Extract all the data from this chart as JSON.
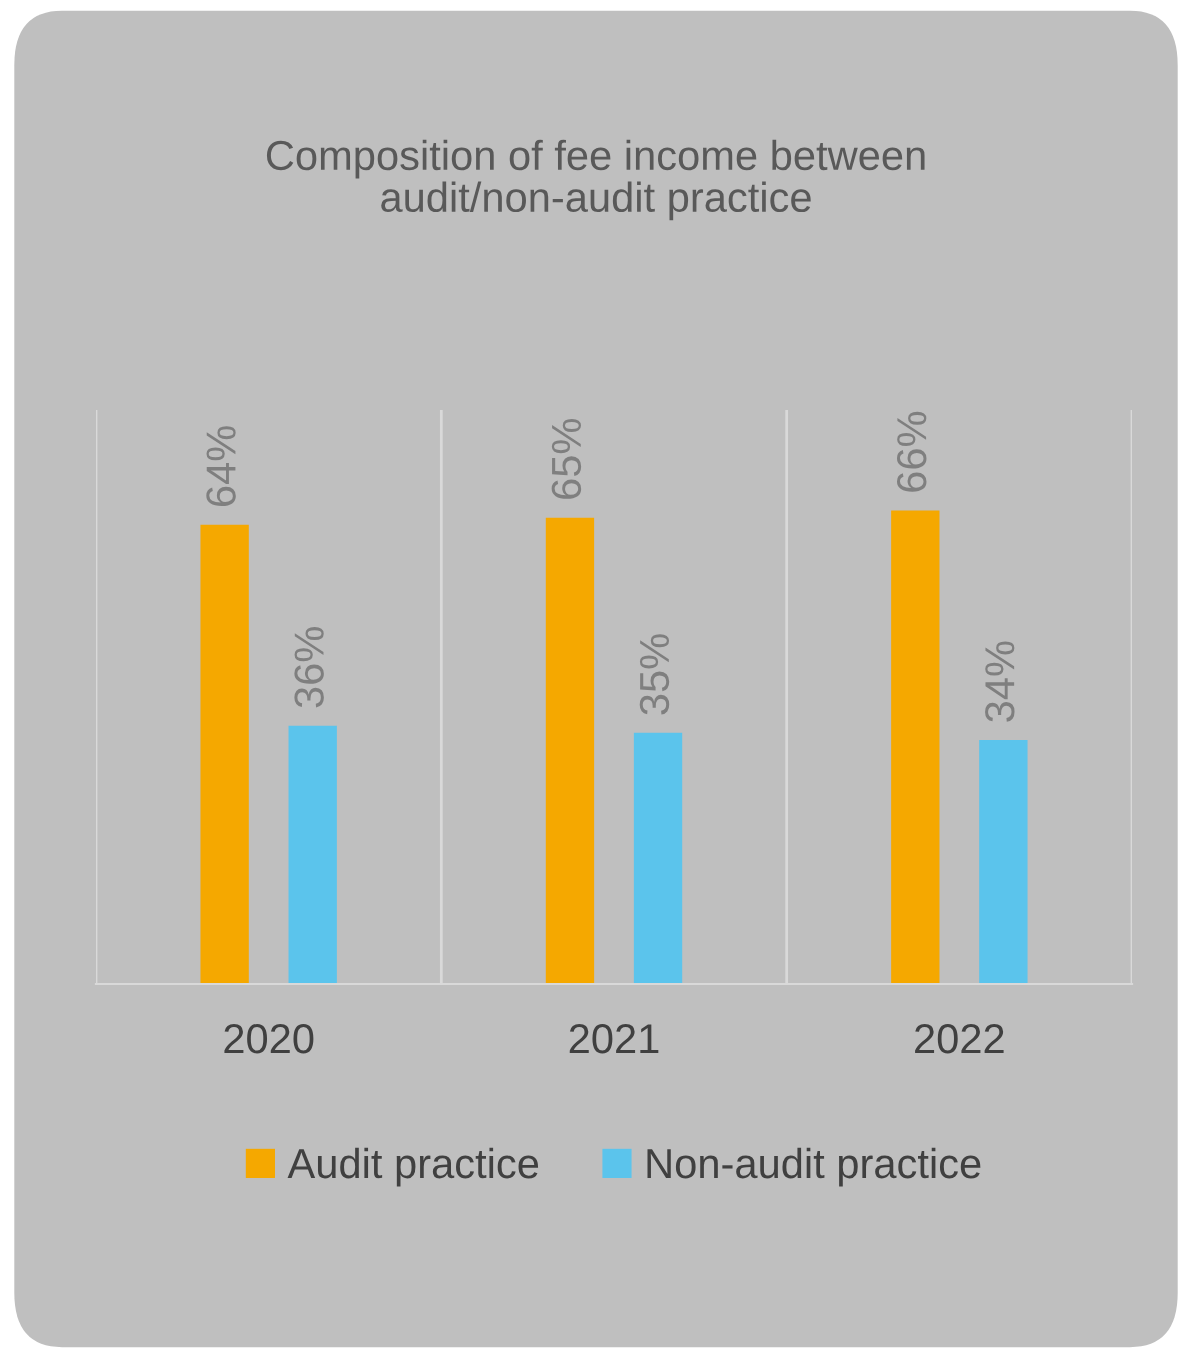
{
  "chart_data": {
    "type": "bar",
    "title": "Composition of fee income between\naudit/non-audit practice",
    "categories": [
      "2020",
      "2021",
      "2022"
    ],
    "series": [
      {
        "name": "Audit practice",
        "color": "#f5a800",
        "values": [
          64,
          65,
          66
        ],
        "value_labels": [
          "64%",
          "65%",
          "66%"
        ]
      },
      {
        "name": "Non-audit practice",
        "color": "#5bc4ec",
        "values": [
          36,
          35,
          34
        ],
        "value_labels": [
          "36%",
          "35%",
          "34%"
        ]
      }
    ],
    "ylim": [
      0,
      80
    ],
    "grid": "x",
    "legend": "bottom",
    "tick_labels": "x"
  }
}
